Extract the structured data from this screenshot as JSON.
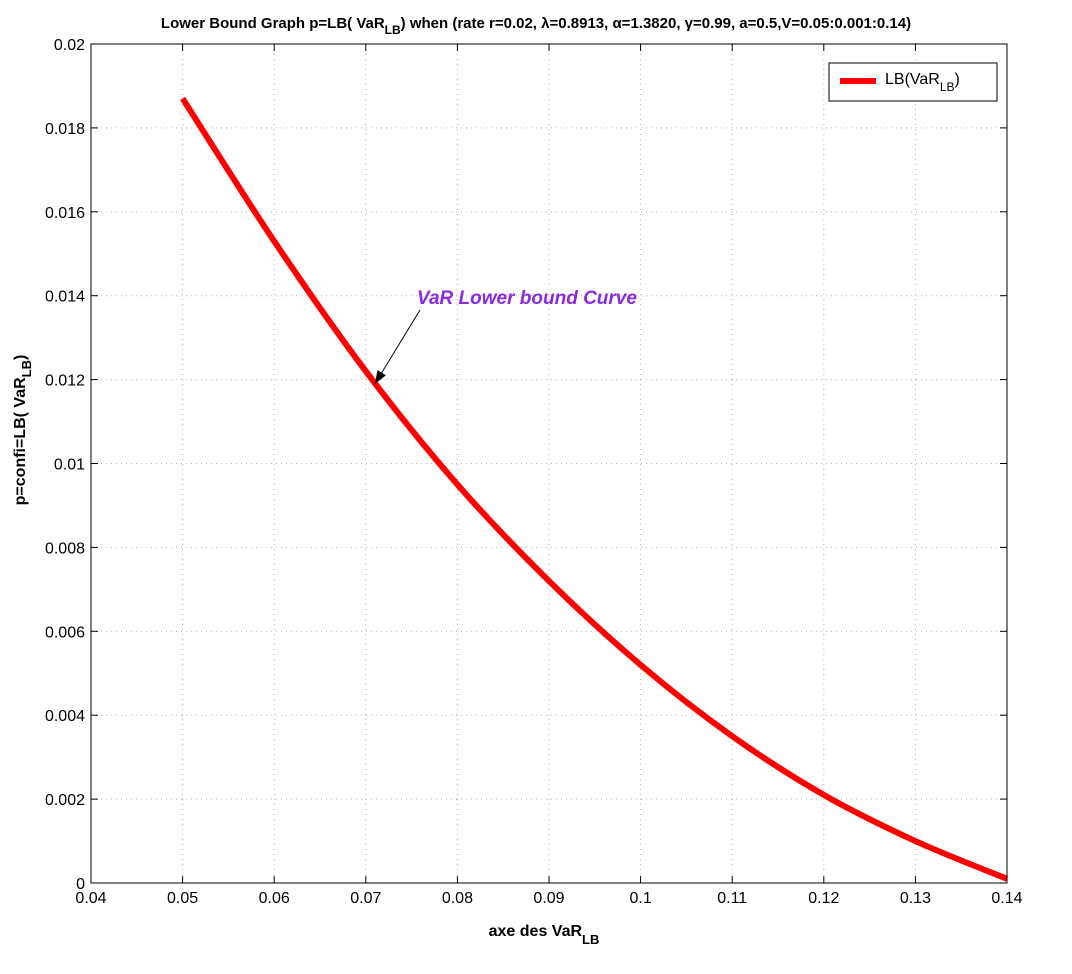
{
  "chart_data": {
    "type": "line",
    "title": {
      "before": "Lower Bound Graph p=LB( VaR",
      "sub": "LB",
      "after": ") when (rate r=0.02, λ=0.8913, α=1.3820, γ=0.99, a=0.5,V=0.05:0.001:0.14)"
    },
    "xlabel": {
      "base": "axe des VaR",
      "sub": "LB"
    },
    "ylabel": {
      "base": "p=confi=LB( VaR",
      "sub": "LB",
      "after": ")"
    },
    "xlim": [
      0.04,
      0.14
    ],
    "ylim": [
      0,
      0.02
    ],
    "x_ticks": [
      0.04,
      0.05,
      0.06,
      0.07,
      0.08,
      0.09,
      0.1,
      0.11,
      0.12,
      0.13,
      0.14
    ],
    "x_tick_labels": [
      "0.04",
      "0.05",
      "0.06",
      "0.07",
      "0.08",
      "0.09",
      "0.1",
      "0.11",
      "0.12",
      "0.13",
      "0.14"
    ],
    "y_ticks": [
      0,
      0.002,
      0.004,
      0.006,
      0.008,
      0.01,
      0.012,
      0.014,
      0.016,
      0.018,
      0.02
    ],
    "y_tick_labels": [
      "0",
      "0.002",
      "0.004",
      "0.006",
      "0.008",
      "0.01",
      "0.012",
      "0.014",
      "0.016",
      "0.018",
      "0.02"
    ],
    "grid": true,
    "legend_position": "top-right",
    "series": [
      {
        "name": {
          "base": "LB(VaR",
          "sub": "LB",
          "after": ")"
        },
        "color": "#ff0000",
        "x": [
          0.05,
          0.06,
          0.07,
          0.08,
          0.09,
          0.1,
          0.11,
          0.12,
          0.13,
          0.14
        ],
        "y": [
          0.0187,
          0.0153,
          0.0122,
          0.0095,
          0.0072,
          0.0052,
          0.0035,
          0.0021,
          0.001,
          0.0001
        ]
      }
    ],
    "annotation": {
      "text": "VaR Lower bound Curve",
      "color": "#8a2be2",
      "arrow_target": {
        "x": 0.071,
        "y": 0.0119
      }
    }
  }
}
